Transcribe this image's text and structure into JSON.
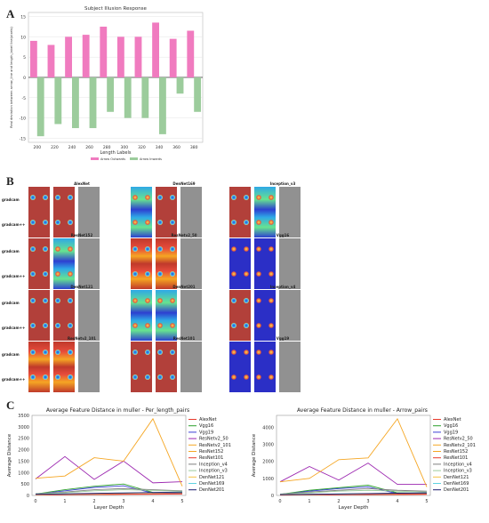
{
  "panel_labels": {
    "a": "A",
    "b": "B",
    "c": "C"
  },
  "panel_b": {
    "row_labels": [
      "gradcam",
      "gradcam++"
    ],
    "models": [
      "AlexNet",
      "DenNet169",
      "Inception_v3",
      "ResNet152",
      "ResNetv2_50",
      "Vgg16",
      "DenNet121",
      "DenNet201",
      "Inception_v4",
      "ResNetv2_101",
      "ResNet101",
      "Vgg19"
    ]
  },
  "colors": {
    "pink": "#f07bbf",
    "green": "#9ccc9c",
    "series": [
      "#e8392c",
      "#2ca02c",
      "#3b3fd6",
      "#9c27b0",
      "#f5a623",
      "#f5a623",
      "#e8392c",
      "#7f7f7f",
      "#9ccc9c",
      "#f5c242",
      "#5fd3e0",
      "#1a1a6e",
      "#d85cd8"
    ]
  },
  "chart_data": [
    {
      "type": "bar",
      "title": "Subject Illusion Response",
      "xlabel": "Length Labels",
      "ylabel": "Real deviation between arrow_line and length_label line(pixels)",
      "categories": [
        "200",
        "220",
        "240",
        "260",
        "280",
        "300",
        "320",
        "340",
        "360",
        "380"
      ],
      "series": [
        {
          "name": "Arrow Outwards",
          "values": [
            9,
            8,
            10,
            10.5,
            12.5,
            10,
            10,
            13.5,
            9.5,
            11.5
          ]
        },
        {
          "name": "Arrow Inwards",
          "values": [
            -14.5,
            -11.5,
            -12.5,
            -12.5,
            -8.5,
            -10,
            -10,
            -14,
            -4,
            -8.5
          ]
        }
      ],
      "yticks": [
        -15,
        -10,
        -5,
        0,
        5,
        10,
        15
      ],
      "ylim": [
        -16,
        16
      ],
      "grid": true,
      "legend": "bottom"
    },
    {
      "type": "line",
      "title": "Average Feature Distance in muller - Per_length_pairs",
      "xlabel": "Layer Depth",
      "ylabel": "Average Distance",
      "x": [
        0,
        1,
        2,
        3,
        4,
        5
      ],
      "ylim": [
        0,
        3500
      ],
      "yticks": [
        0,
        500,
        1000,
        1500,
        2000,
        2500,
        3000,
        3500
      ],
      "series": [
        {
          "name": "AlexNet",
          "values": [
            20,
            30,
            40,
            45,
            50,
            60
          ]
        },
        {
          "name": "Vgg16",
          "values": [
            60,
            250,
            400,
            500,
            130,
            120
          ]
        },
        {
          "name": "Vgg19",
          "values": [
            50,
            200,
            350,
            420,
            100,
            90
          ]
        },
        {
          "name": "ResNetv2_50",
          "values": [
            720,
            1700,
            700,
            1500,
            550,
            600
          ]
        },
        {
          "name": "ResNetv2_101",
          "values": [
            750,
            850,
            1650,
            1500,
            3350,
            400
          ]
        },
        {
          "name": "ResNet152",
          "values": [
            30,
            40,
            50,
            60,
            70,
            80
          ]
        },
        {
          "name": "ResNet101",
          "values": [
            25,
            35,
            45,
            55,
            65,
            75
          ]
        },
        {
          "name": "Inception_v4",
          "values": [
            80,
            150,
            250,
            300,
            250,
            200
          ]
        },
        {
          "name": "Inception_v3",
          "values": [
            70,
            120,
            200,
            250,
            220,
            180
          ]
        },
        {
          "name": "DenNet121",
          "values": [
            40,
            60,
            80,
            100,
            120,
            140
          ]
        },
        {
          "name": "DenNet169",
          "values": [
            45,
            65,
            85,
            105,
            125,
            145
          ]
        },
        {
          "name": "DenNet201",
          "values": [
            50,
            70,
            90,
            110,
            130,
            150
          ]
        }
      ]
    },
    {
      "type": "line",
      "title": "Average Feature Distance in muller - Arrow_pairs",
      "xlabel": "Layer Depth",
      "ylabel": "Average Distance",
      "x": [
        0,
        1,
        2,
        3,
        4,
        5
      ],
      "ylim": [
        0,
        4700
      ],
      "yticks": [
        0,
        1000,
        2000,
        3000,
        4000
      ],
      "series": [
        {
          "name": "AlexNet",
          "values": [
            20,
            30,
            40,
            45,
            50,
            60
          ]
        },
        {
          "name": "Vgg16",
          "values": [
            60,
            300,
            450,
            600,
            150,
            130
          ]
        },
        {
          "name": "Vgg19",
          "values": [
            50,
            250,
            400,
            500,
            110,
            100
          ]
        },
        {
          "name": "ResNetv2_50",
          "values": [
            800,
            1700,
            900,
            1900,
            650,
            650
          ]
        },
        {
          "name": "ResNetv2_101",
          "values": [
            800,
            1000,
            2100,
            2200,
            4500,
            500
          ]
        },
        {
          "name": "ResNet152",
          "values": [
            30,
            40,
            50,
            60,
            70,
            80
          ]
        },
        {
          "name": "ResNet101",
          "values": [
            25,
            35,
            45,
            55,
            65,
            75
          ]
        },
        {
          "name": "Inception_v4",
          "values": [
            80,
            200,
            300,
            400,
            300,
            250
          ]
        },
        {
          "name": "Inception_v3",
          "values": [
            70,
            150,
            250,
            300,
            250,
            200
          ]
        },
        {
          "name": "DenNet121",
          "values": [
            40,
            60,
            80,
            100,
            120,
            140
          ]
        },
        {
          "name": "DenNet169",
          "values": [
            45,
            65,
            85,
            105,
            125,
            145
          ]
        },
        {
          "name": "DenNet201",
          "values": [
            50,
            70,
            90,
            110,
            130,
            150
          ]
        }
      ]
    }
  ],
  "legend_c": [
    "AlexNet",
    "Vgg16",
    "Vgg19",
    "ResNetv2_50",
    "ResNetv2_101",
    "ResNet152",
    "ResNet101",
    "Inception_v4",
    "Inception_v3",
    "DenNet121",
    "DenNet169",
    "DenNet201"
  ]
}
